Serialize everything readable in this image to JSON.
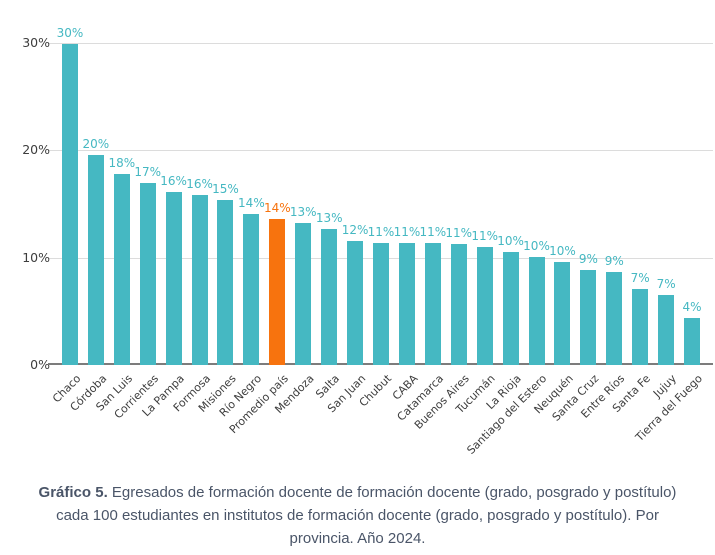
{
  "colors": {
    "bar": "#45b8c2",
    "highlight": "#f7730e",
    "value_label": "#45b8c2",
    "value_label_highlight": "#f7730e",
    "axis_text": "#3d3d3d",
    "gridline": "#dcdcdc",
    "axis_line": "#7c7c7c",
    "caption_text": "#4a5568"
  },
  "chart_data": {
    "type": "bar",
    "title": "",
    "xlabel": "",
    "ylabel": "",
    "ylim": [
      0,
      30
    ],
    "grid": "horizontal",
    "legend": "none",
    "highlight_category": "Promedio país",
    "categories": [
      "Chaco",
      "Córdoba",
      "San Luis",
      "Corrientes",
      "La Pampa",
      "Formosa",
      "Misiones",
      "Río Negro",
      "Promedio país",
      "Mendoza",
      "Salta",
      "San Juan",
      "Chubut",
      "CABA",
      "Catamarca",
      "Buenos Aires",
      "Tucumán",
      "La Rioja",
      "Santiago del Estero",
      "Neuquén",
      "Santa Cruz",
      "Entre Ríos",
      "Santa Fe",
      "Jujuy",
      "Tierra del Fuego"
    ],
    "values": [
      30,
      20,
      18,
      17,
      16,
      16,
      15,
      14,
      14,
      13,
      13,
      12,
      11,
      11,
      11,
      11,
      11,
      10,
      10,
      10,
      9,
      9,
      7,
      7,
      4
    ],
    "value_labels": [
      "30%",
      "20%",
      "18%",
      "17%",
      "16%",
      "16%",
      "15%",
      "14%",
      "14%",
      "13%",
      "13%",
      "12%",
      "11%",
      "11%",
      "11%",
      "11%",
      "11%",
      "10%",
      "10%",
      "10%",
      "9%",
      "9%",
      "7%",
      "7%",
      "4%"
    ],
    "bar_heights_pct": [
      29.9,
      19.6,
      17.8,
      17.0,
      16.1,
      15.8,
      15.4,
      14.1,
      13.6,
      13.2,
      12.7,
      11.6,
      11.4,
      11.4,
      11.4,
      11.3,
      11.0,
      10.5,
      10.1,
      9.6,
      8.9,
      8.7,
      7.1,
      6.5,
      4.35
    ],
    "yticks": [
      {
        "value": 0,
        "label": "0%"
      },
      {
        "value": 10,
        "label": "10%"
      },
      {
        "value": 20,
        "label": "20%"
      },
      {
        "value": 30,
        "label": "30%"
      }
    ]
  },
  "caption": {
    "prefix": "Gráfico 5.",
    "text": "Egresados de formación docente de formación docente (grado, posgrado y postítulo) cada 100 estudiantes en institutos de formación docente (grado, posgrado y postítulo). Por provincia. Año 2024."
  }
}
